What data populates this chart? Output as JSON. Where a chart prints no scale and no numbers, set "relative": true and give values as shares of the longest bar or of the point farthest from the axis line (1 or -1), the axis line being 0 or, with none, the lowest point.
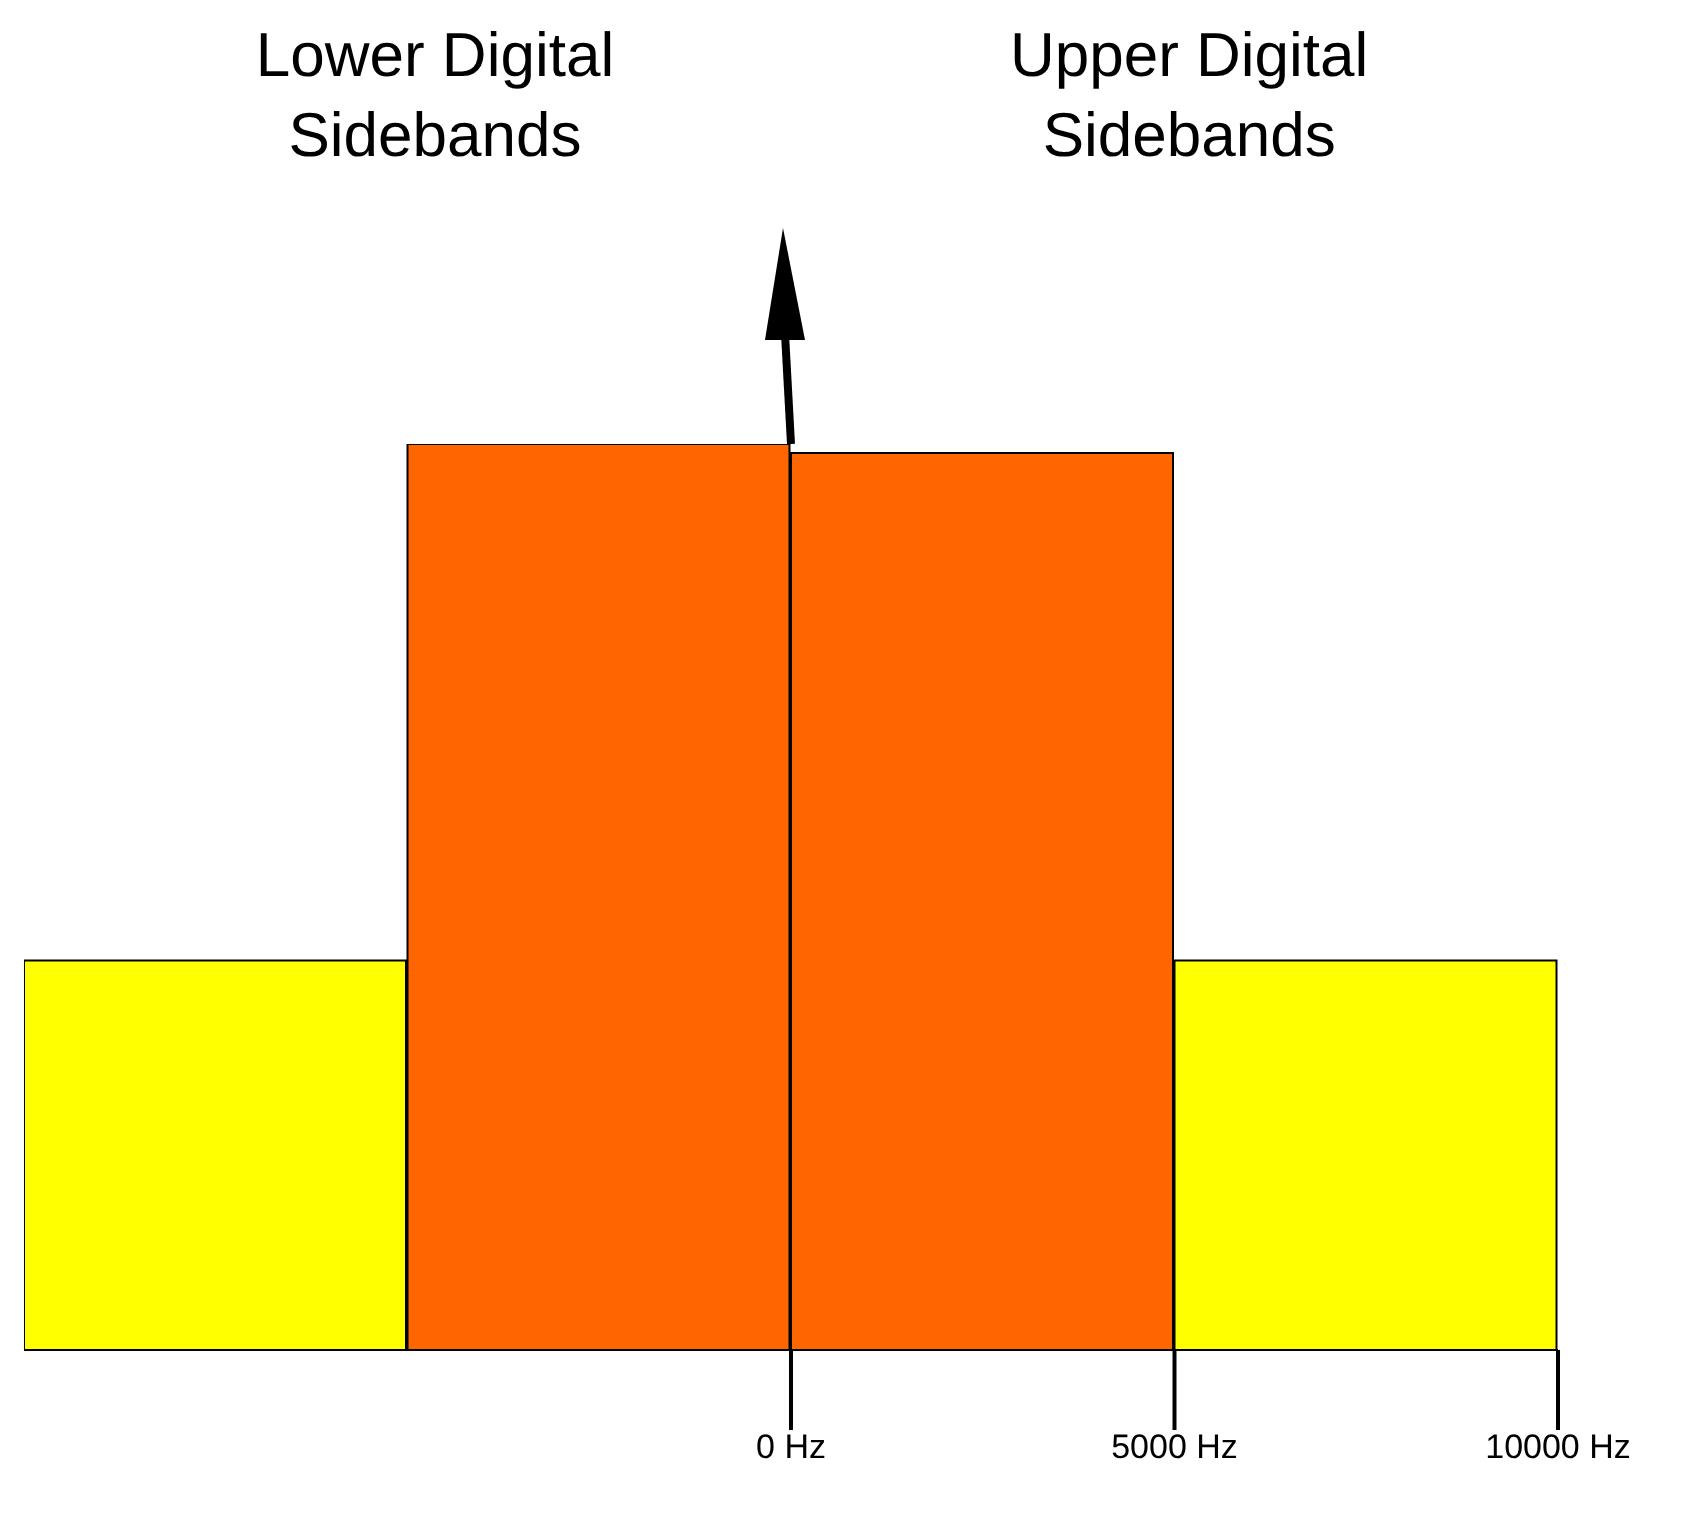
{
  "chart_data": {
    "type": "bar",
    "relative": true,
    "x": [
      -7500,
      -2500,
      2500,
      7500
    ],
    "values": [
      0.43,
      1,
      0.99,
      0.43
    ],
    "colors": [
      "#ffff00",
      "#ff6600",
      "#ff6600",
      "#ffff00"
    ],
    "xlim": [
      -10000,
      10000
    ],
    "xticks": [
      {
        "value": 0,
        "label": "0 Hz"
      },
      {
        "value": 5000,
        "label": "5000 Hz"
      },
      {
        "value": 10000,
        "label": "10000 Hz"
      }
    ],
    "annotations": [
      "Lower Digital Sidebands",
      "Upper Digital Sidebands"
    ]
  }
}
